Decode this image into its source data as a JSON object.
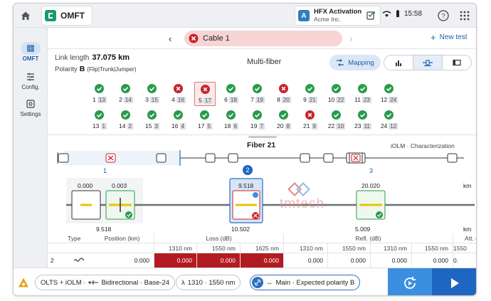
{
  "topbar": {
    "app_name": "OMFT",
    "activation_badge": "A",
    "activation_title": "HFX Activation",
    "activation_sub": "Acme Inc.",
    "time": "15:58"
  },
  "nav": {
    "items": [
      {
        "label": "OMFT",
        "icon": "omft-icon",
        "active": true
      },
      {
        "label": "Config.",
        "icon": "sliders-icon",
        "active": false
      },
      {
        "label": "Settings",
        "icon": "gear-icon",
        "active": false
      }
    ]
  },
  "cablebar": {
    "cable_label": "Cable 1",
    "new_test_label": "New test"
  },
  "info": {
    "link_length_label": "Link length",
    "link_length_value": "37.075 km",
    "polarity_label": "Polarity",
    "polarity_value": "B",
    "polarity_detail": "(Flip|Trunk|Jumper)",
    "mode_label": "Multi-fiber",
    "mapping_label": "Mapping"
  },
  "fibers_row1": [
    {
      "num": "1",
      "pair": "13",
      "status": "pass"
    },
    {
      "num": "2",
      "pair": "14",
      "status": "pass"
    },
    {
      "num": "3",
      "pair": "15",
      "status": "pass"
    },
    {
      "num": "4",
      "pair": "16",
      "status": "fail"
    },
    {
      "num": "5",
      "pair": "17",
      "status": "fail"
    },
    {
      "num": "6",
      "pair": "18",
      "status": "pass"
    },
    {
      "num": "7",
      "pair": "19",
      "status": "pass"
    },
    {
      "num": "8",
      "pair": "20",
      "status": "fail"
    },
    {
      "num": "9",
      "pair": "21",
      "status": "pass"
    },
    {
      "num": "10",
      "pair": "22",
      "status": "pass"
    },
    {
      "num": "11",
      "pair": "23",
      "status": "pass"
    },
    {
      "num": "12",
      "pair": "24",
      "status": "pass"
    }
  ],
  "fibers_row2": [
    {
      "num": "13",
      "pair": "1",
      "status": "pass"
    },
    {
      "num": "14",
      "pair": "2",
      "status": "pass"
    },
    {
      "num": "15",
      "pair": "3",
      "status": "pass"
    },
    {
      "num": "16",
      "pair": "4",
      "status": "pass"
    },
    {
      "num": "17",
      "pair": "5",
      "status": "pass"
    },
    {
      "num": "18",
      "pair": "6",
      "status": "pass"
    },
    {
      "num": "19",
      "pair": "7",
      "status": "pass"
    },
    {
      "num": "20",
      "pair": "8",
      "status": "pass"
    },
    {
      "num": "21",
      "pair": "9",
      "status": "fail"
    },
    {
      "num": "22",
      "pair": "10",
      "status": "pass"
    },
    {
      "num": "23",
      "pair": "11",
      "status": "pass"
    },
    {
      "num": "24",
      "pair": "12",
      "status": "pass"
    }
  ],
  "selected_fiber": "5",
  "detail": {
    "title": "Fiber 21",
    "mode": "iOLM · Characterization",
    "span_label_1": "1",
    "span_label_2": "2",
    "span_label_3": "3",
    "unit_km": "km",
    "ev_a_top_left": "0.000",
    "ev_a_top_right": "0.003",
    "ev_b_top": "9.518",
    "ev_c_top": "20.020",
    "ev_a_bottom": "9.518",
    "ev_b_bottom": "10.502",
    "ev_c_bottom": "5.009",
    "watermark": "tmtech"
  },
  "table": {
    "col_type": "Type",
    "col_position": "Position (km)",
    "group_loss": "Loss (dB)",
    "group_refl": "Refl. (dB)",
    "group_att": "Att. (",
    "wl_1310": "1310 nm",
    "wl_1550": "1550 nm",
    "wl_1625": "1625 nm",
    "wl_1550b": "1550",
    "row_index": "2",
    "row_position": "0.000",
    "row_loss_1310": "0.000",
    "row_loss_1550": "0.000",
    "row_loss_1625": "0.000",
    "row_refl_1310": "0.000",
    "row_refl_1550": "0.000",
    "row_refl_1625": "0.000",
    "row_att_1550": "0.000",
    "row_att_last": "0."
  },
  "bottombar": {
    "chip_config": "OLTS + iOLM · ",
    "chip_direction": "Bidirectional · Base-24",
    "chip_wavelength": "1310 · 1550 nm",
    "chip_polarity": "Main · Expected polarity B"
  },
  "colors": {
    "pass": "#2b9a4d",
    "fail": "#c8232b",
    "accent": "#1f5ea8",
    "loss_fail": "#b31b22"
  }
}
